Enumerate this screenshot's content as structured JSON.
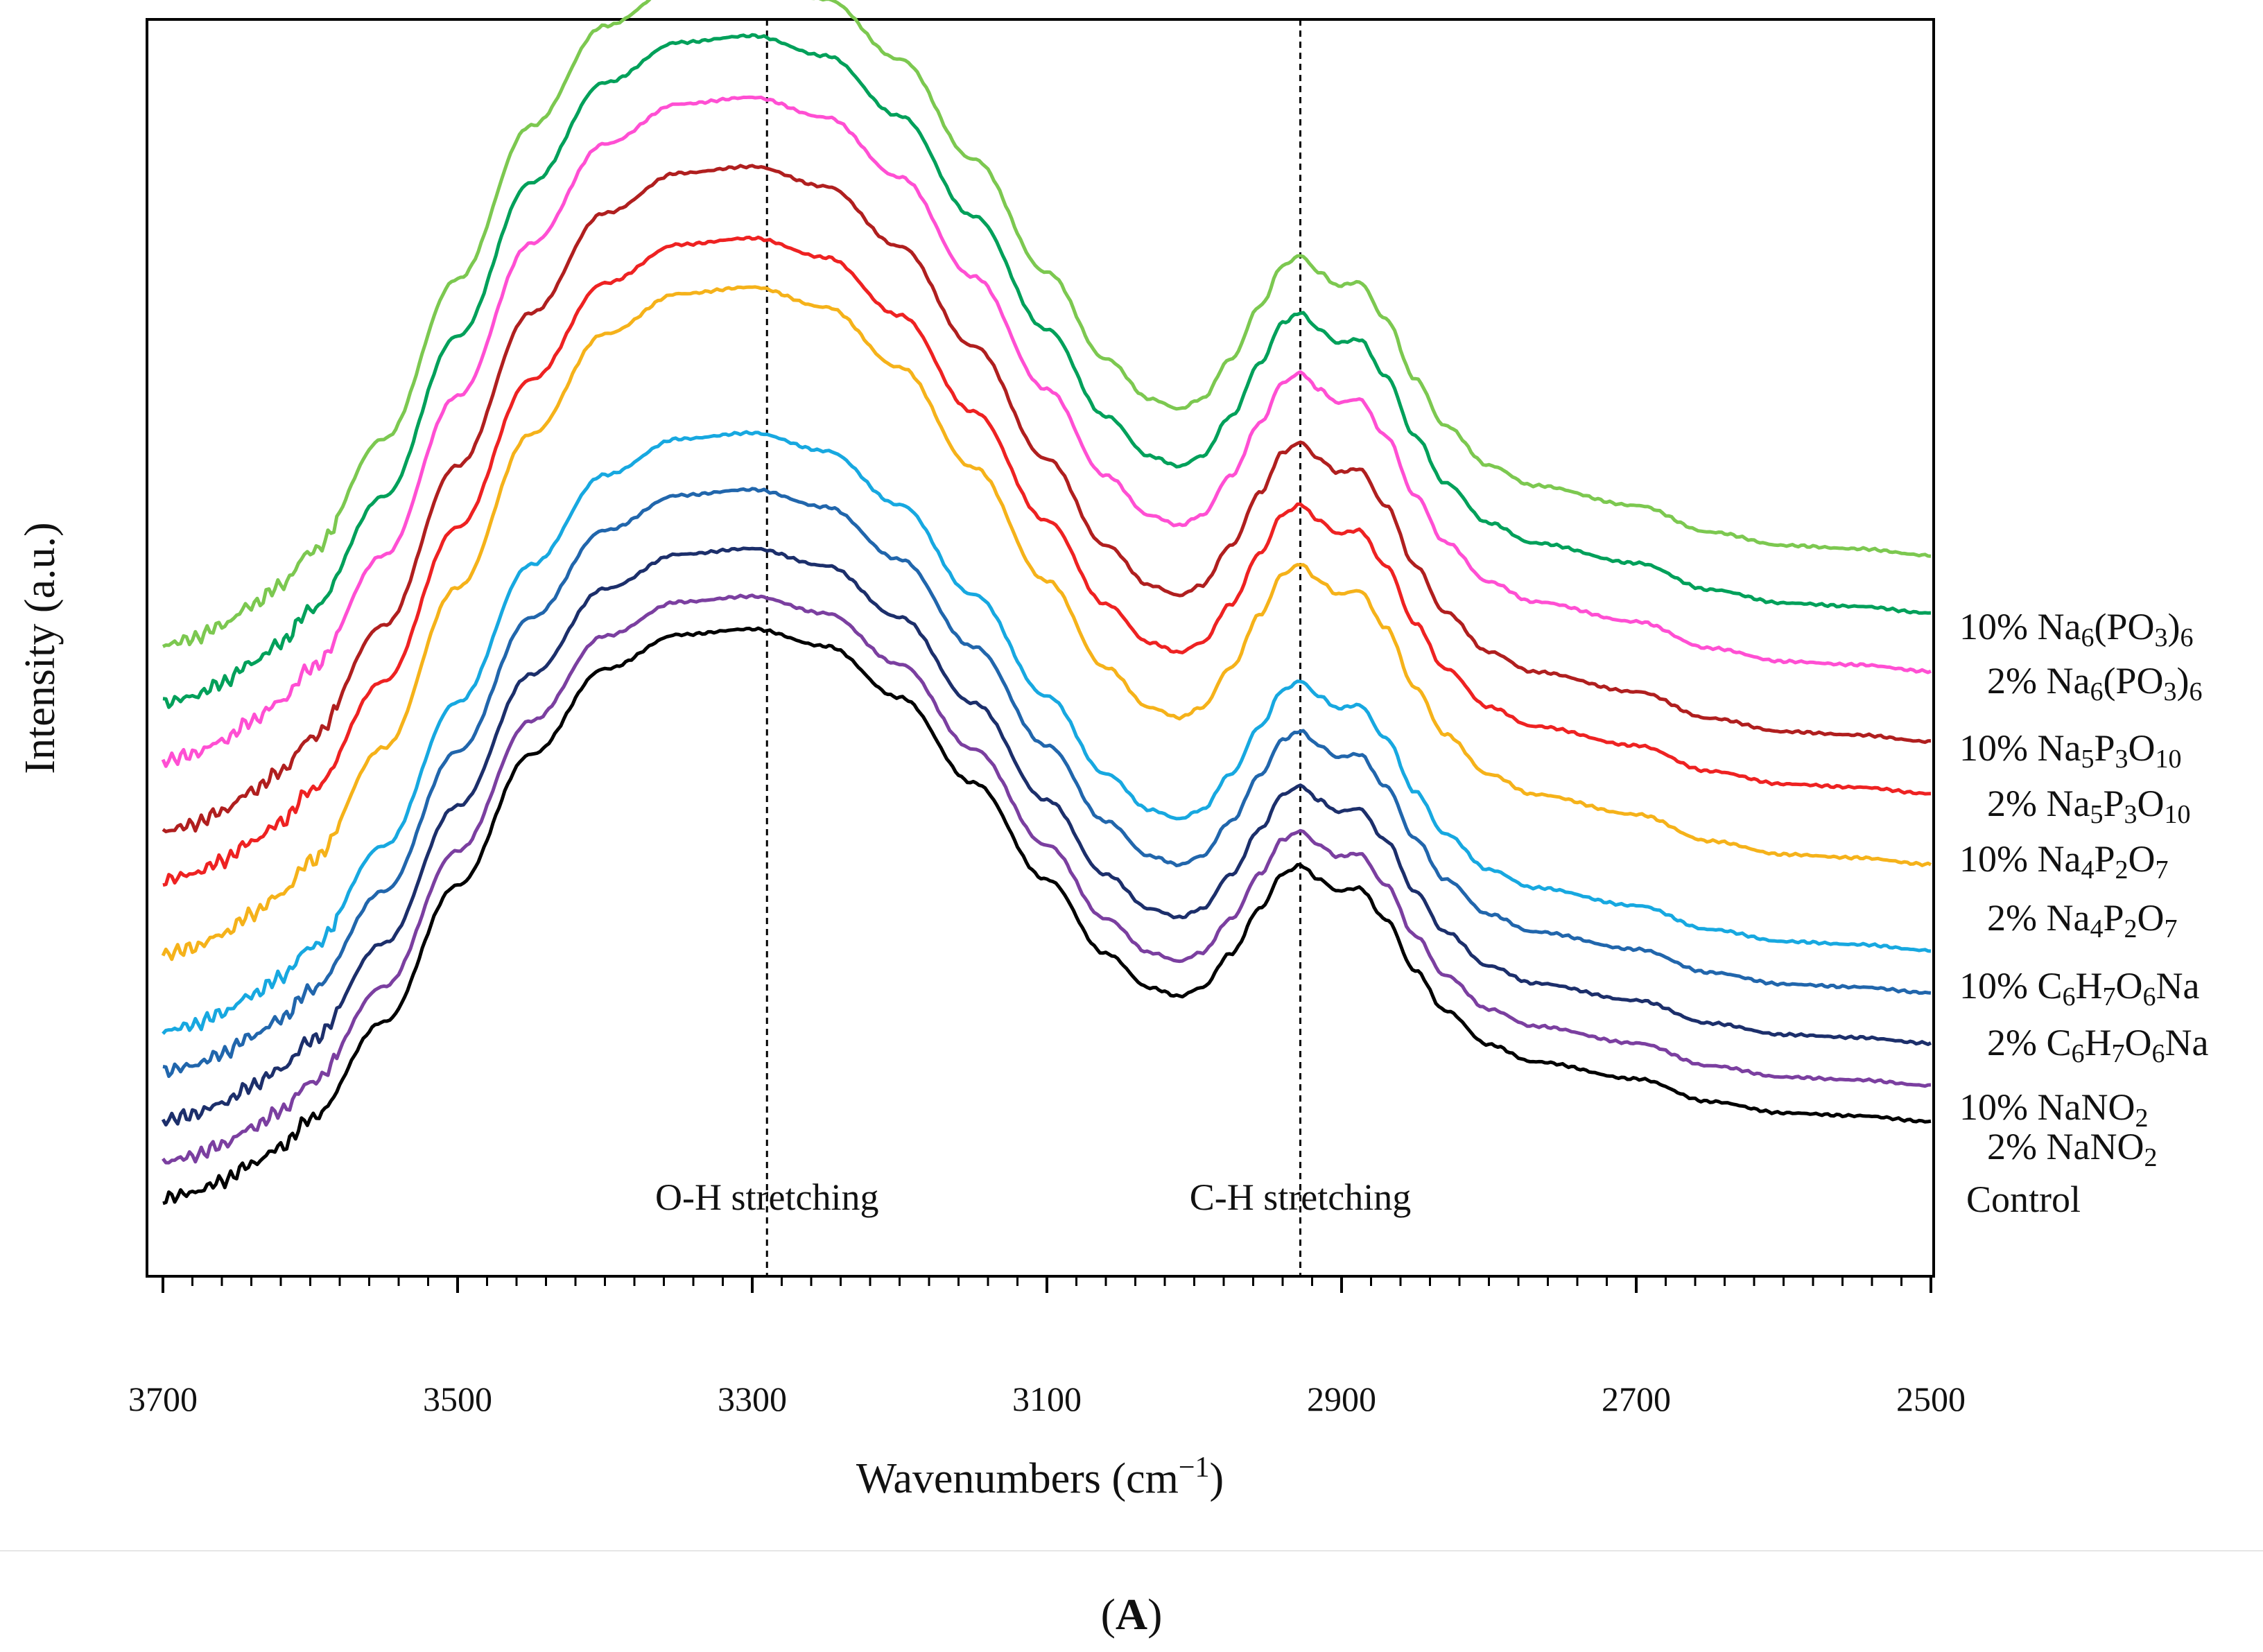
{
  "chart_data": {
    "type": "line",
    "title": "",
    "panel_label": "A",
    "xlabel": "Wavenumbers",
    "xlabel_unit": "cm",
    "xlabel_unit_sup": "−1",
    "ylabel": "Intensity (a.u.)",
    "xlim": [
      3700,
      2500
    ],
    "x_ticks": [
      3700,
      3500,
      3300,
      3100,
      2900,
      2700,
      2500
    ],
    "x_tick_labels": [
      "3700",
      "3500",
      "3300",
      "3100",
      "2900",
      "2700",
      "2500"
    ],
    "x_minor_step": 20,
    "ylim": [
      0,
      100
    ],
    "reference_lines": [
      {
        "x": 3290,
        "label": "O-H stretching",
        "style": "dashed"
      },
      {
        "x": 2928,
        "label": "C-H stretching",
        "style": "dashed"
      }
    ],
    "shape_points": {
      "x": [
        3700,
        3680,
        3660,
        3640,
        3620,
        3600,
        3550,
        3500,
        3450,
        3400,
        3350,
        3300,
        3250,
        3200,
        3150,
        3100,
        3060,
        3030,
        3010,
        2995,
        2975,
        2955,
        2940,
        2928,
        2915,
        2903,
        2888,
        2870,
        2850,
        2830,
        2800,
        2770,
        2700,
        2650,
        2600,
        2550,
        2500
      ],
      "unit": [
        0.0,
        0.01,
        0.03,
        0.06,
        0.09,
        0.14,
        0.31,
        0.55,
        0.78,
        0.93,
        0.99,
        1.0,
        0.97,
        0.88,
        0.73,
        0.56,
        0.43,
        0.37,
        0.355,
        0.37,
        0.43,
        0.51,
        0.57,
        0.585,
        0.56,
        0.54,
        0.545,
        0.49,
        0.4,
        0.33,
        0.27,
        0.24,
        0.21,
        0.17,
        0.15,
        0.145,
        0.135
      ]
    },
    "series": [
      {
        "name": "Control",
        "label": "Control",
        "color": "#000000",
        "baseline": 6.2,
        "amplitude": 45.3
      },
      {
        "name": "2% NaNO2",
        "label": "2% NaNO2",
        "color": "#7b3fa0",
        "baseline": 9.1,
        "amplitude": 45.0
      },
      {
        "name": "10% NaNO2",
        "label": "10% NaNO2",
        "color": "#1c2f6b",
        "baseline": 12.4,
        "amplitude": 45.5
      },
      {
        "name": "2% C6H7O6Na",
        "label": "2% C6H7O6Na",
        "color": "#2166ac",
        "baseline": 16.3,
        "amplitude": 46.3
      },
      {
        "name": "10% C6H7O6Na",
        "label": "10% C6H7O6Na",
        "color": "#17a8e0",
        "baseline": 19.5,
        "amplitude": 47.6
      },
      {
        "name": "2% Na4P2O7",
        "label": "2% Na4P2O7",
        "color": "#f5b21a",
        "baseline": 25.6,
        "amplitude": 53.1
      },
      {
        "name": "10% Na4P2O7",
        "label": "10% Na4P2O7",
        "color": "#ee2222",
        "baseline": 31.5,
        "amplitude": 51.1
      },
      {
        "name": "2% Na5P3O10",
        "label": "2% Na5P3O10",
        "color": "#b01f1f",
        "baseline": 35.4,
        "amplitude": 52.9
      },
      {
        "name": "10% Na5P3O10",
        "label": "10% Na5P3O10",
        "color": "#ff4fd3",
        "baseline": 41.0,
        "amplitude": 52.8
      },
      {
        "name": "2% Na6(PO3)6",
        "label": "2% Na6(PO3)6",
        "color": "#00a05a",
        "baseline": 45.6,
        "amplitude": 53.1
      },
      {
        "name": "10% Na6(PO3)6",
        "label": "10% Na6(PO3)6",
        "color": "#7cc850",
        "baseline": 50.2,
        "amplitude": 53.0
      }
    ],
    "legend": "right, at line ends"
  }
}
